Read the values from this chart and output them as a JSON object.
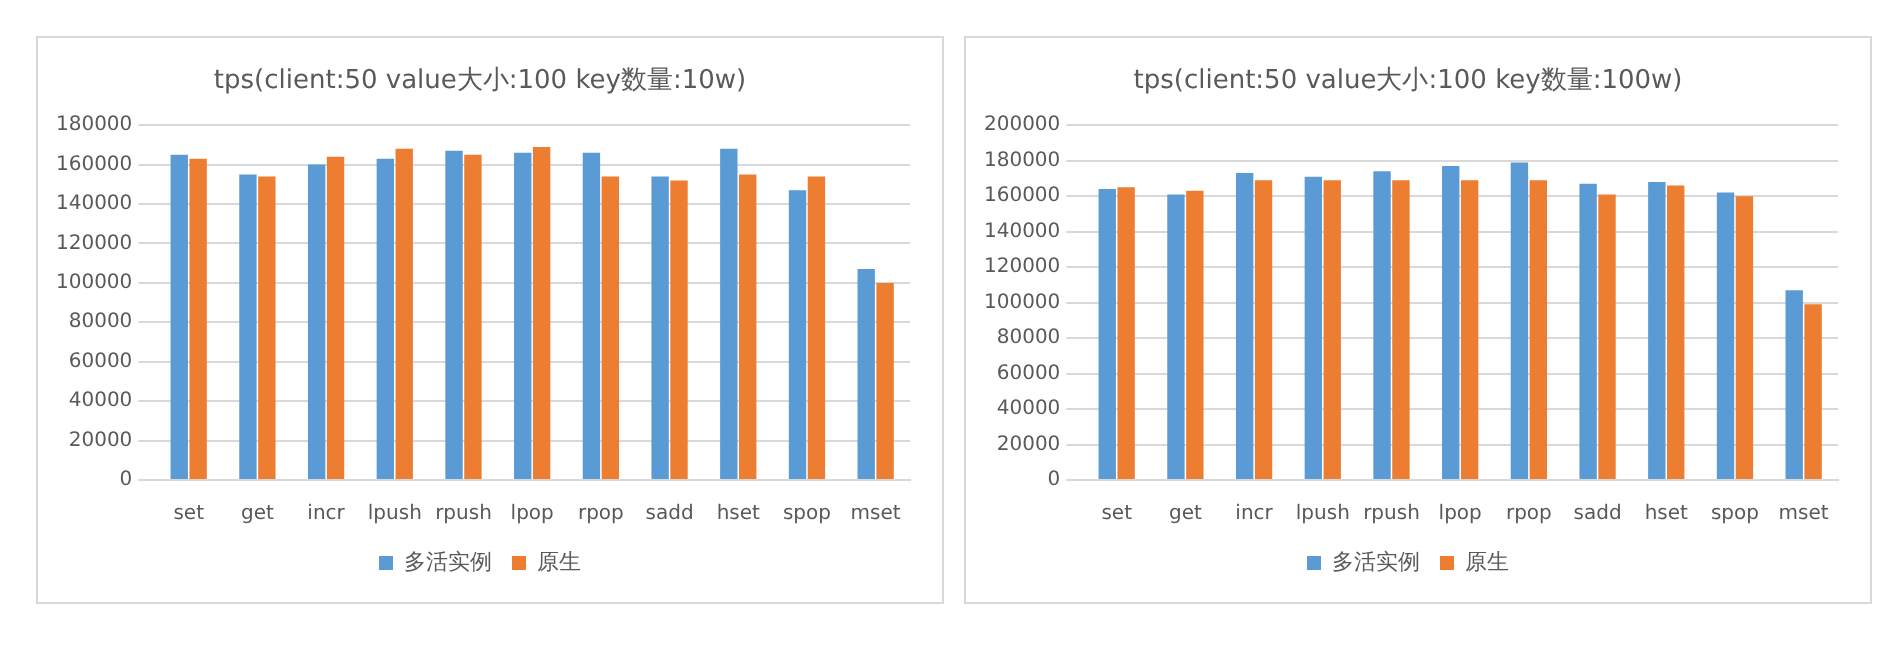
{
  "chart_data": [
    {
      "type": "bar",
      "title": "tps(client:50 value大小:100 key数量:10w)",
      "categories": [
        "set",
        "get",
        "incr",
        "lpush",
        "rpush",
        "lpop",
        "rpop",
        "sadd",
        "hset",
        "spop",
        "mset"
      ],
      "series": [
        {
          "name": "多活实例",
          "color": "#5b9bd5",
          "values": [
            165000,
            155000,
            160000,
            163000,
            167000,
            166000,
            166000,
            154000,
            168000,
            147000,
            107000
          ]
        },
        {
          "name": "原生",
          "color": "#ed7d31",
          "values": [
            163000,
            154000,
            164000,
            168000,
            165000,
            169000,
            154000,
            152000,
            155000,
            154000,
            100000
          ]
        }
      ],
      "ylim": [
        0,
        180000
      ],
      "yticks": [
        0,
        20000,
        40000,
        60000,
        80000,
        100000,
        120000,
        140000,
        160000,
        180000
      ],
      "grid": "y",
      "legend": "bottom"
    },
    {
      "type": "bar",
      "title": "tps(client:50 value大小:100 key数量:100w)",
      "categories": [
        "set",
        "get",
        "incr",
        "lpush",
        "rpush",
        "lpop",
        "rpop",
        "sadd",
        "hset",
        "spop",
        "mset"
      ],
      "series": [
        {
          "name": "多活实例",
          "color": "#5b9bd5",
          "values": [
            164000,
            161000,
            173000,
            171000,
            174000,
            177000,
            179000,
            167000,
            168000,
            162000,
            107000
          ]
        },
        {
          "name": "原生",
          "color": "#ed7d31",
          "values": [
            165000,
            163000,
            169000,
            169000,
            169000,
            169000,
            169000,
            161000,
            166000,
            160000,
            99000
          ]
        }
      ],
      "ylim": [
        0,
        200000
      ],
      "yticks": [
        0,
        20000,
        40000,
        60000,
        80000,
        100000,
        120000,
        140000,
        160000,
        180000,
        200000
      ],
      "grid": "y",
      "legend": "bottom"
    }
  ]
}
